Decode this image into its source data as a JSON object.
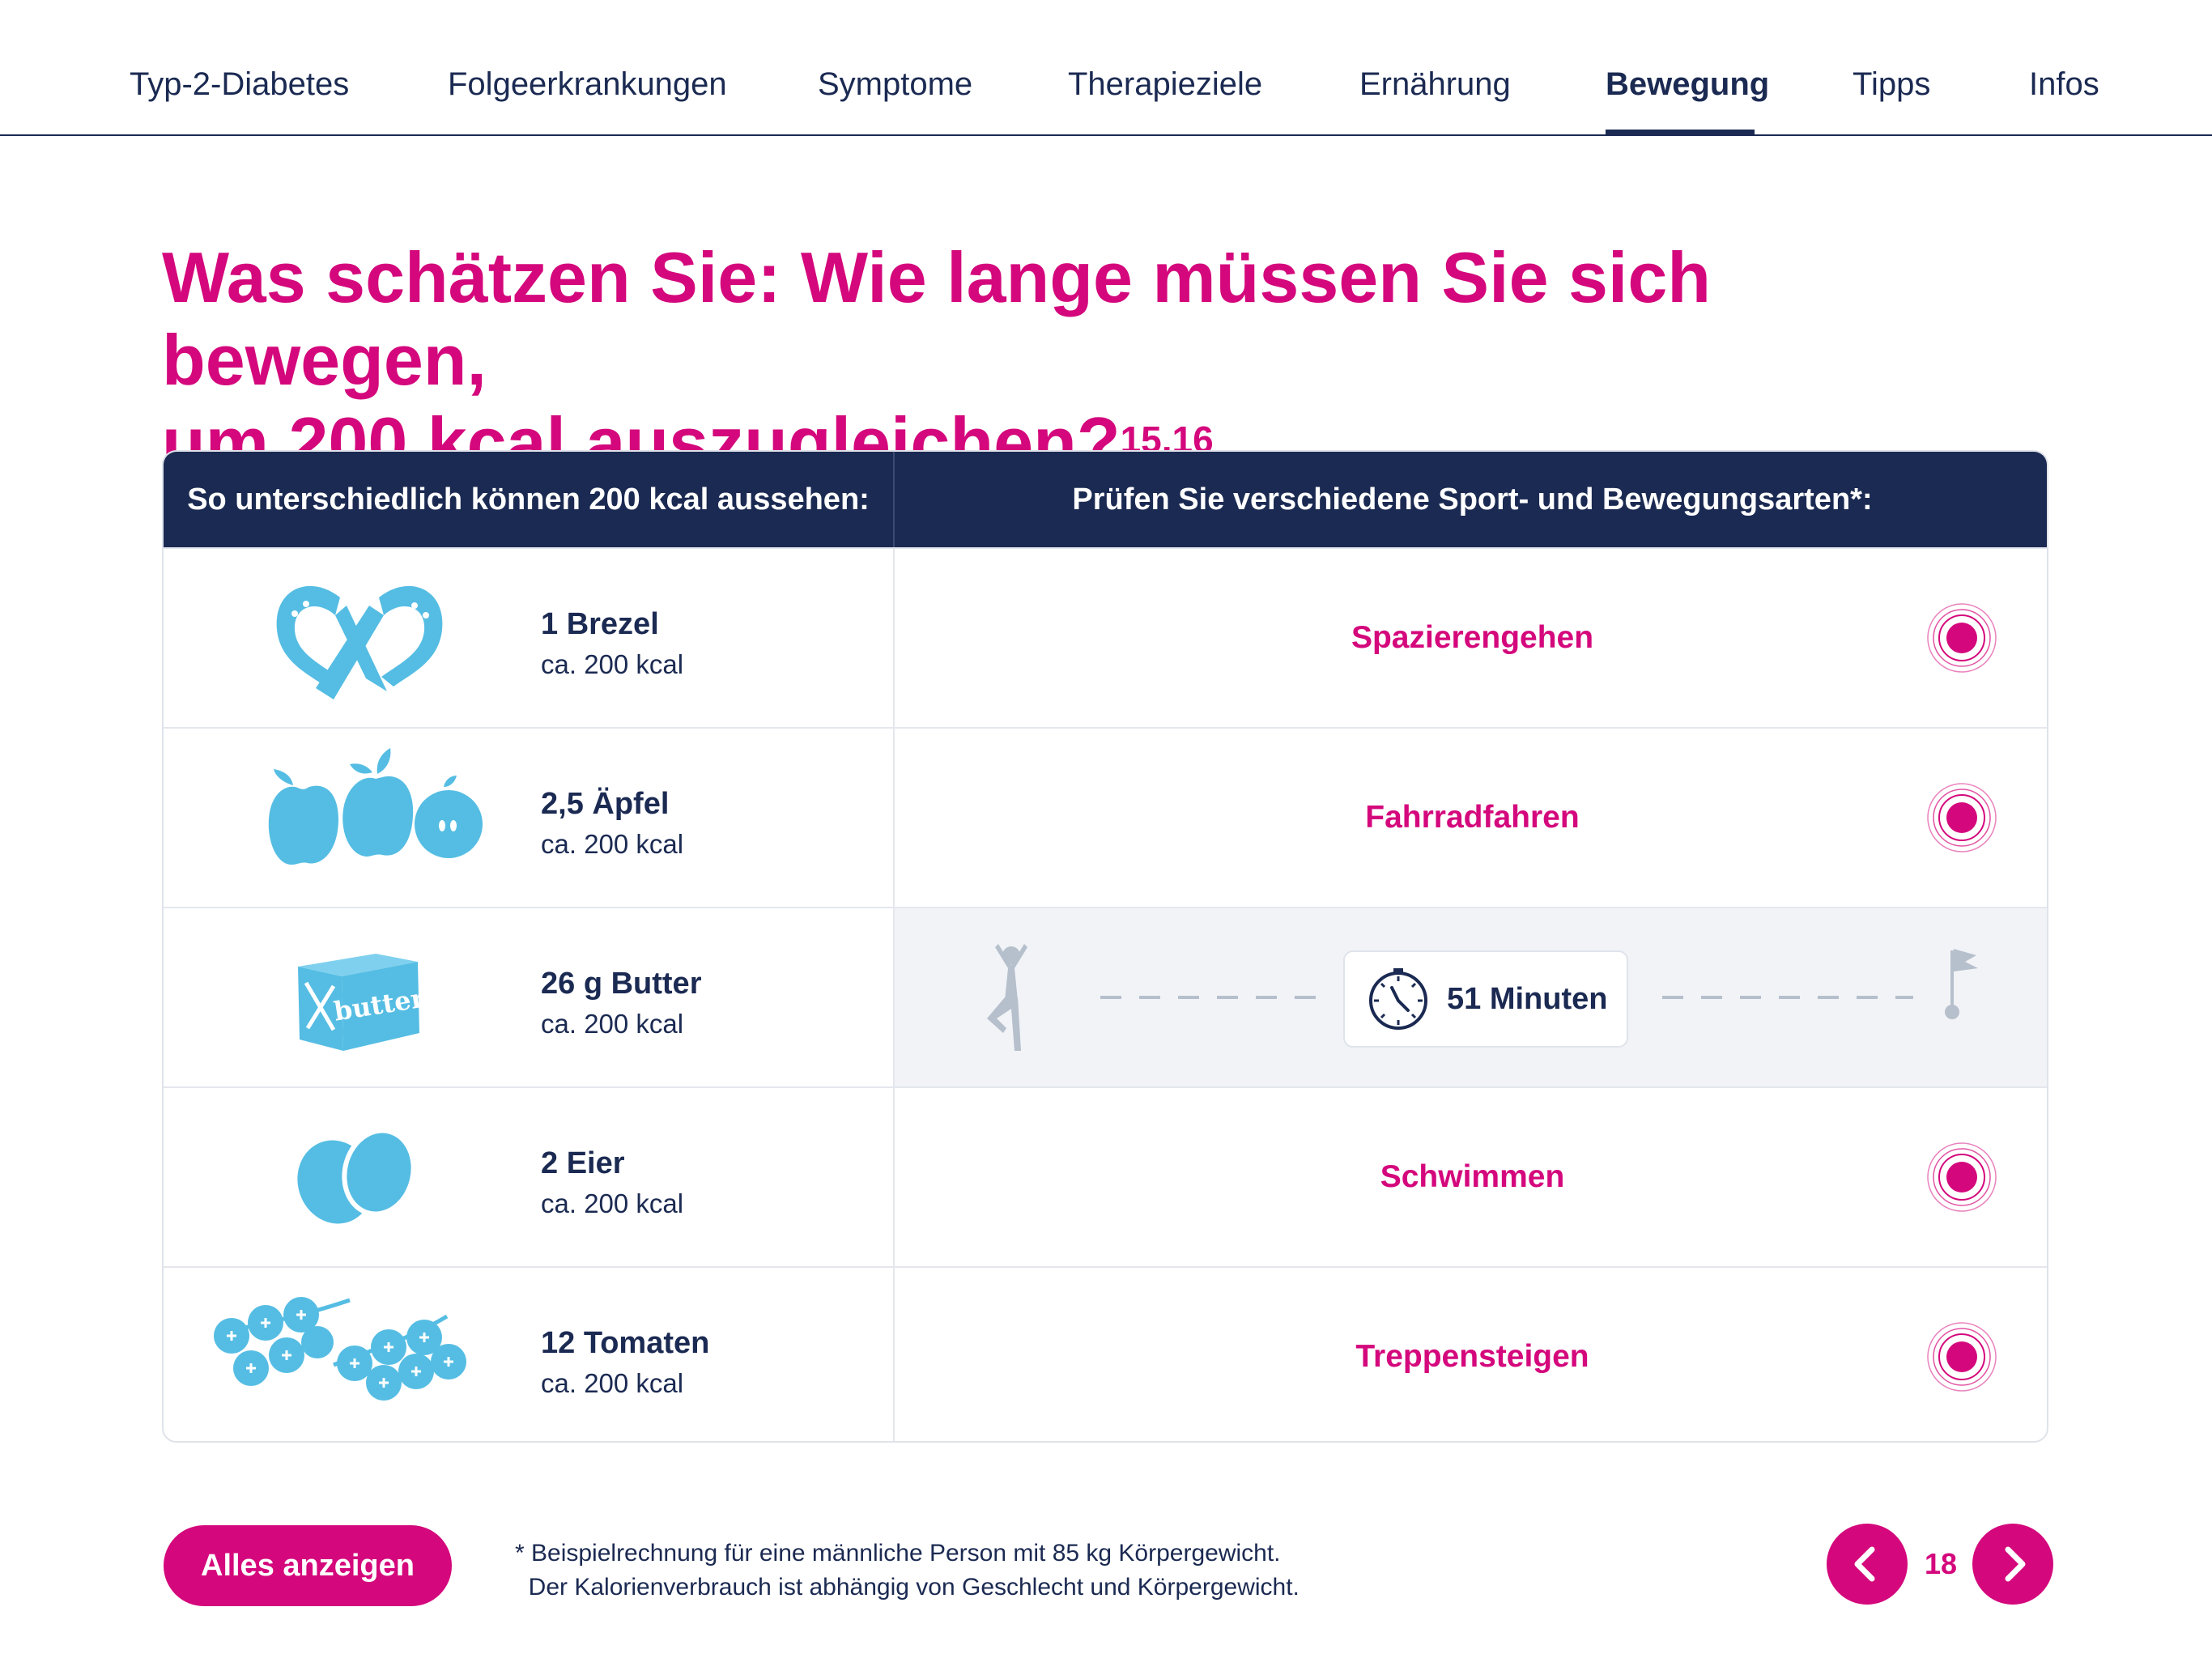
{
  "nav": {
    "items": [
      {
        "label": "Typ-2-Diabetes"
      },
      {
        "label": "Folgeerkrankungen"
      },
      {
        "label": "Symptome"
      },
      {
        "label": "Therapieziele"
      },
      {
        "label": "Ernährung"
      },
      {
        "label": "Bewegung",
        "active": true
      },
      {
        "label": "Tipps"
      },
      {
        "label": "Infos"
      }
    ]
  },
  "title": {
    "line1": "Was schätzen Sie: Wie lange müssen Sie sich bewegen,",
    "line2": "um 200 kcal auszugleichen?",
    "superscript": "15,16"
  },
  "table": {
    "header_left": "So unterschiedlich können 200 kcal aussehen:",
    "header_right": "Prüfen Sie verschiedene Sport- und Bewegungsarten*:",
    "rows": [
      {
        "food": "1 Brezel",
        "kcal": "ca. 200 kcal",
        "food_icon": "pretzel-icon",
        "activity": "Spazierengehen"
      },
      {
        "food": "2,5 Äpfel",
        "kcal": "ca. 200 kcal",
        "food_icon": "apples-icon",
        "activity": "Fahrradfahren"
      },
      {
        "food": "26 g Butter",
        "kcal": "ca. 200 kcal",
        "food_icon": "butter-icon",
        "butter_text": "butter",
        "active": true,
        "time": "51 Minuten"
      },
      {
        "food": "2 Eier",
        "kcal": "ca. 200 kcal",
        "food_icon": "eggs-icon",
        "activity": "Schwimmen"
      },
      {
        "food": "12 Tomaten",
        "kcal": "ca. 200 kcal",
        "food_icon": "tomatoes-icon",
        "activity": "Treppensteigen"
      }
    ]
  },
  "footer": {
    "button_label": "Alles anzeigen",
    "footnote_line1": "* Beispielrechnung für eine männliche Person mit 85 kg Körpergewicht.",
    "footnote_line2": "  Der Kalorienverbrauch ist abhängig von Geschlecht und Körpergewicht.",
    "page_number": "18"
  },
  "colors": {
    "accent": "#d4087c",
    "navy": "#1b2a52",
    "icon_blue": "#55bde3",
    "muted": "#b6bfcc"
  }
}
